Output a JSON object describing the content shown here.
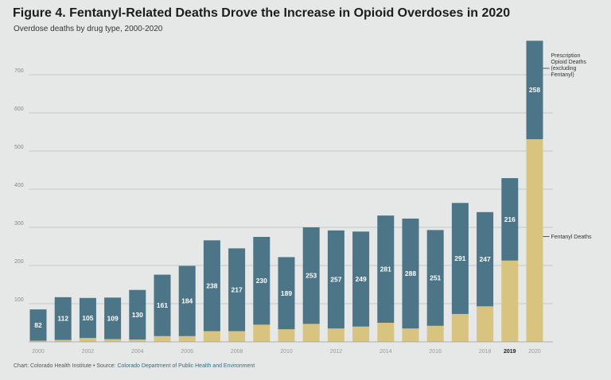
{
  "title": "Figure 4. Fentanyl-Related Deaths Drove the Increase in Opioid Overdoses in 2020",
  "subtitle": "Overdose deaths by drug type, 2000-2020",
  "footer": {
    "prefix": "Chart: Colorado Health Institute • Source: ",
    "source": "Colorado Department of Public Health and Environment"
  },
  "colors": {
    "prescription": "#4c7687",
    "fentanyl": "#d8c47f",
    "grid": "#b9bebd"
  },
  "chart_data": {
    "type": "bar",
    "stacked": true,
    "title": "Figure 4. Fentanyl-Related Deaths Drove the Increase in Opioid Overdoses in 2020",
    "subtitle": "Overdose deaths by drug type, 2000-2020",
    "xlabel": "",
    "ylabel": "",
    "ylim": [
      0,
      800
    ],
    "yticks": [
      100,
      200,
      300,
      400,
      500,
      600,
      700
    ],
    "grid": true,
    "categories": [
      "2000",
      "2001",
      "2002",
      "2003",
      "2004",
      "2005",
      "2006",
      "2007",
      "2008",
      "2009",
      "2010",
      "2011",
      "2012",
      "2013",
      "2014",
      "2015",
      "2016",
      "2017",
      "2018",
      "2019",
      "2020"
    ],
    "x_tick_labels": [
      "2000",
      "",
      "2002",
      "",
      "2004",
      "",
      "2006",
      "",
      "2008",
      "",
      "2010",
      "",
      "2012",
      "",
      "2014",
      "",
      "2016",
      "",
      "2018",
      "2019",
      "2020"
    ],
    "series": [
      {
        "name": "Fentanyl Deaths",
        "values": [
          3,
          5,
          10,
          7,
          6,
          15,
          15,
          28,
          28,
          45,
          33,
          47,
          35,
          40,
          50,
          35,
          42,
          73,
          93,
          213,
          531
        ]
      },
      {
        "name": "Prescription Opioid Deaths (excluding Fentanyl)",
        "values": [
          82,
          112,
          105,
          109,
          130,
          161,
          184,
          238,
          217,
          230,
          189,
          253,
          257,
          249,
          281,
          288,
          251,
          291,
          247,
          216,
          258
        ],
        "data_labels": [
          "82",
          "112",
          "105",
          "109",
          "130",
          "161",
          "184",
          "238",
          "217",
          "230",
          "189",
          "253",
          "257",
          "249",
          "281",
          "288",
          "251",
          "291",
          "247",
          "216",
          "258"
        ]
      }
    ],
    "legend": [
      {
        "lines": [
          "Prescription",
          "Opioid Deaths",
          "(excluding",
          "Fentanyl)"
        ],
        "series": "Prescription Opioid Deaths (excluding Fentanyl)"
      },
      {
        "lines": [
          "Fentanyl Deaths"
        ],
        "series": "Fentanyl Deaths"
      }
    ],
    "legend_position": "right"
  }
}
